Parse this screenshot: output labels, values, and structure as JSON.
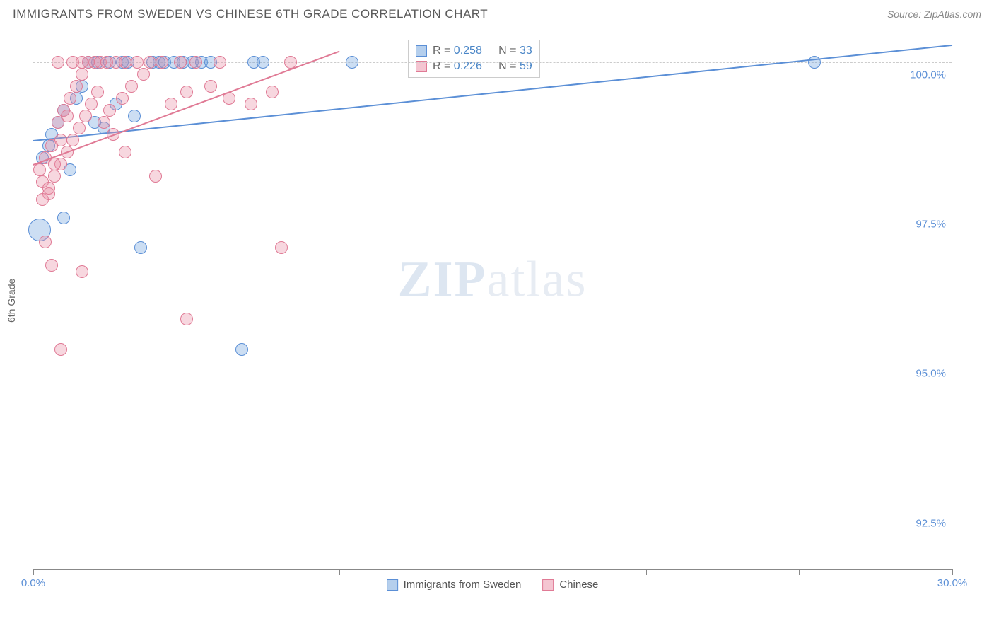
{
  "title": "IMMIGRANTS FROM SWEDEN VS CHINESE 6TH GRADE CORRELATION CHART",
  "source": "Source: ZipAtlas.com",
  "y_axis_label": "6th Grade",
  "watermark": {
    "bold": "ZIP",
    "light": "atlas"
  },
  "chart": {
    "type": "scatter",
    "xlim": [
      0,
      30
    ],
    "ylim": [
      91.5,
      100.5
    ],
    "x_ticks": [
      0,
      5,
      10,
      15,
      20,
      25,
      30
    ],
    "x_tick_labels": {
      "0": "0.0%",
      "30": "30.0%"
    },
    "y_gridlines": [
      92.5,
      95.0,
      97.5,
      100.0
    ],
    "y_tick_labels": {
      "92.5": "92.5%",
      "95.0": "95.0%",
      "97.5": "97.5%",
      "100.0": "100.0%"
    },
    "background_color": "#ffffff",
    "grid_color": "#cccccc",
    "axis_color": "#888888",
    "marker_radius": 9,
    "marker_opacity": 0.45,
    "series": [
      {
        "name": "Immigrants from Sweden",
        "color": "#6ca0dc",
        "fill": "rgba(108,160,220,0.35)",
        "stroke": "#5b8fd6",
        "R": "0.258",
        "N": "33",
        "trend": {
          "x1": 0,
          "y1": 98.7,
          "x2": 30,
          "y2": 100.3
        },
        "points": [
          {
            "x": 0.2,
            "y": 97.2,
            "r": 16
          },
          {
            "x": 0.3,
            "y": 98.4
          },
          {
            "x": 0.5,
            "y": 98.6
          },
          {
            "x": 0.8,
            "y": 99.0
          },
          {
            "x": 1.0,
            "y": 99.2
          },
          {
            "x": 1.2,
            "y": 98.2
          },
          {
            "x": 1.4,
            "y": 99.4
          },
          {
            "x": 1.6,
            "y": 99.6
          },
          {
            "x": 1.8,
            "y": 100.0
          },
          {
            "x": 2.0,
            "y": 99.0
          },
          {
            "x": 2.1,
            "y": 100.0
          },
          {
            "x": 2.3,
            "y": 98.9
          },
          {
            "x": 2.5,
            "y": 100.0
          },
          {
            "x": 2.7,
            "y": 99.3
          },
          {
            "x": 2.9,
            "y": 100.0
          },
          {
            "x": 3.1,
            "y": 100.0
          },
          {
            "x": 3.3,
            "y": 99.1
          },
          {
            "x": 3.9,
            "y": 100.0
          },
          {
            "x": 4.1,
            "y": 100.0
          },
          {
            "x": 4.3,
            "y": 100.0
          },
          {
            "x": 4.6,
            "y": 100.0
          },
          {
            "x": 4.9,
            "y": 100.0
          },
          {
            "x": 5.2,
            "y": 100.0
          },
          {
            "x": 5.5,
            "y": 100.0
          },
          {
            "x": 5.8,
            "y": 100.0
          },
          {
            "x": 7.2,
            "y": 100.0
          },
          {
            "x": 7.5,
            "y": 100.0
          },
          {
            "x": 10.4,
            "y": 100.0
          },
          {
            "x": 3.5,
            "y": 96.9
          },
          {
            "x": 6.8,
            "y": 95.2
          },
          {
            "x": 25.5,
            "y": 100.0
          },
          {
            "x": 1.0,
            "y": 97.4
          },
          {
            "x": 0.6,
            "y": 98.8
          }
        ]
      },
      {
        "name": "Chinese",
        "color": "#e98ba4",
        "fill": "rgba(233,139,164,0.35)",
        "stroke": "#e07a95",
        "R": "0.226",
        "N": "59",
        "trend": {
          "x1": 0,
          "y1": 98.3,
          "x2": 10,
          "y2": 100.2
        },
        "points": [
          {
            "x": 0.2,
            "y": 98.2
          },
          {
            "x": 0.3,
            "y": 98.0
          },
          {
            "x": 0.4,
            "y": 98.4
          },
          {
            "x": 0.5,
            "y": 97.8
          },
          {
            "x": 0.6,
            "y": 98.6
          },
          {
            "x": 0.7,
            "y": 98.1
          },
          {
            "x": 0.8,
            "y": 99.0
          },
          {
            "x": 0.9,
            "y": 98.3
          },
          {
            "x": 1.0,
            "y": 99.2
          },
          {
            "x": 1.1,
            "y": 98.5
          },
          {
            "x": 1.2,
            "y": 99.4
          },
          {
            "x": 1.3,
            "y": 98.7
          },
          {
            "x": 1.4,
            "y": 99.6
          },
          {
            "x": 1.5,
            "y": 98.9
          },
          {
            "x": 1.6,
            "y": 99.8
          },
          {
            "x": 1.7,
            "y": 99.1
          },
          {
            "x": 1.8,
            "y": 100.0
          },
          {
            "x": 1.9,
            "y": 99.3
          },
          {
            "x": 2.0,
            "y": 100.0
          },
          {
            "x": 2.1,
            "y": 99.5
          },
          {
            "x": 2.2,
            "y": 100.0
          },
          {
            "x": 2.3,
            "y": 99.0
          },
          {
            "x": 2.4,
            "y": 100.0
          },
          {
            "x": 2.5,
            "y": 99.2
          },
          {
            "x": 2.7,
            "y": 100.0
          },
          {
            "x": 2.9,
            "y": 99.4
          },
          {
            "x": 3.0,
            "y": 100.0
          },
          {
            "x": 3.2,
            "y": 99.6
          },
          {
            "x": 3.4,
            "y": 100.0
          },
          {
            "x": 3.6,
            "y": 99.8
          },
          {
            "x": 3.8,
            "y": 100.0
          },
          {
            "x": 4.0,
            "y": 98.1
          },
          {
            "x": 4.2,
            "y": 100.0
          },
          {
            "x": 4.5,
            "y": 99.3
          },
          {
            "x": 4.8,
            "y": 100.0
          },
          {
            "x": 5.0,
            "y": 99.5
          },
          {
            "x": 5.3,
            "y": 100.0
          },
          {
            "x": 5.8,
            "y": 99.6
          },
          {
            "x": 6.1,
            "y": 100.0
          },
          {
            "x": 6.4,
            "y": 99.4
          },
          {
            "x": 7.1,
            "y": 99.3
          },
          {
            "x": 7.8,
            "y": 99.5
          },
          {
            "x": 8.4,
            "y": 100.0
          },
          {
            "x": 8.1,
            "y": 96.9
          },
          {
            "x": 0.4,
            "y": 97.0
          },
          {
            "x": 0.6,
            "y": 96.6
          },
          {
            "x": 0.9,
            "y": 95.2
          },
          {
            "x": 1.6,
            "y": 96.5
          },
          {
            "x": 5.0,
            "y": 95.7
          },
          {
            "x": 0.3,
            "y": 97.7
          },
          {
            "x": 0.5,
            "y": 97.9
          },
          {
            "x": 0.7,
            "y": 98.3
          },
          {
            "x": 0.9,
            "y": 98.7
          },
          {
            "x": 1.1,
            "y": 99.1
          },
          {
            "x": 0.8,
            "y": 100.0
          },
          {
            "x": 1.3,
            "y": 100.0
          },
          {
            "x": 1.6,
            "y": 100.0
          },
          {
            "x": 3.0,
            "y": 98.5
          },
          {
            "x": 2.6,
            "y": 98.8
          }
        ]
      }
    ]
  },
  "legend_top": {
    "rows": [
      {
        "swatch_fill": "rgba(108,160,220,0.5)",
        "swatch_stroke": "#5b8fd6",
        "r_label": "R =",
        "r_val": "0.258",
        "n_label": "N =",
        "n_val": "33"
      },
      {
        "swatch_fill": "rgba(233,139,164,0.5)",
        "swatch_stroke": "#e07a95",
        "r_label": "R =",
        "r_val": "0.226",
        "n_label": "N =",
        "n_val": "59"
      }
    ]
  },
  "legend_bottom": [
    {
      "swatch_fill": "rgba(108,160,220,0.5)",
      "swatch_stroke": "#5b8fd6",
      "label": "Immigrants from Sweden"
    },
    {
      "swatch_fill": "rgba(233,139,164,0.5)",
      "swatch_stroke": "#e07a95",
      "label": "Chinese"
    }
  ]
}
